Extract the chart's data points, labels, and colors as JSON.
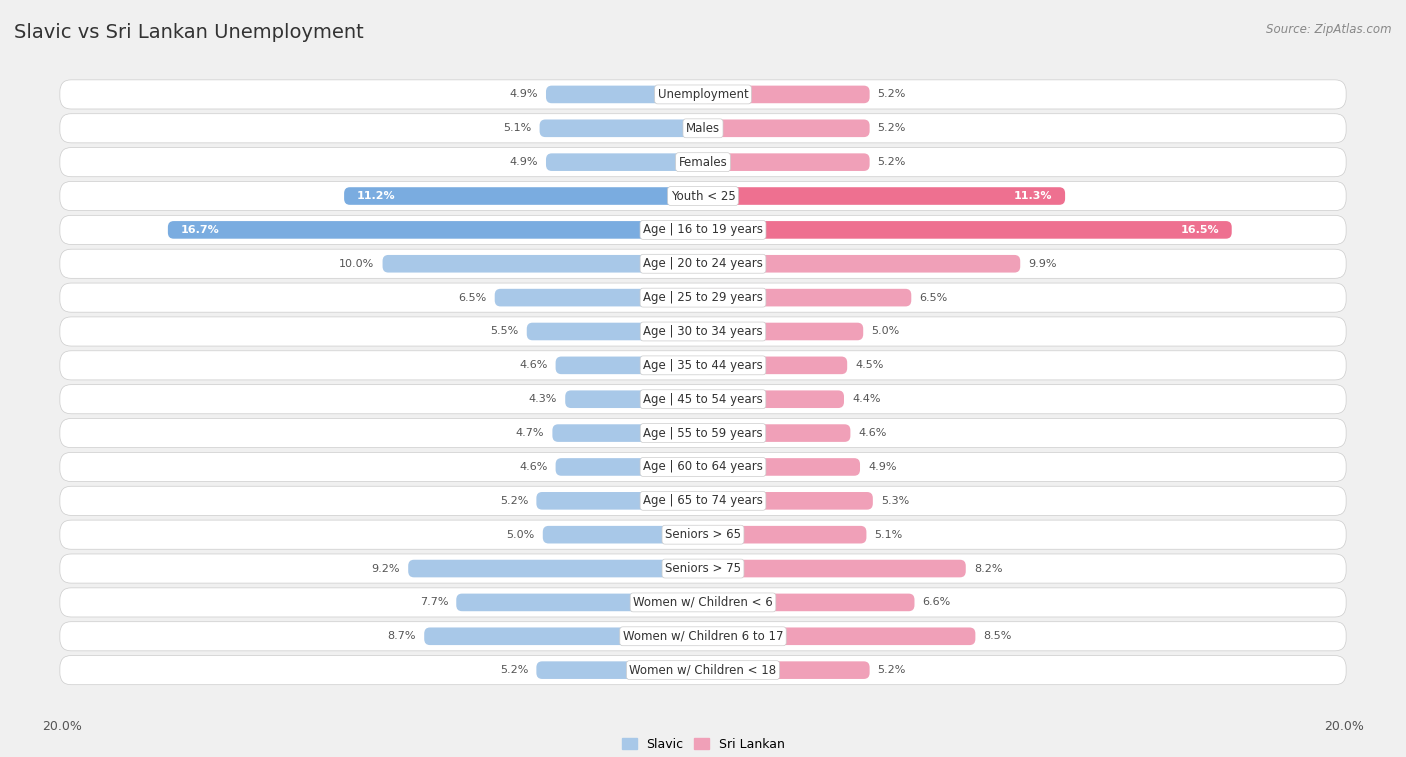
{
  "title": "Slavic vs Sri Lankan Unemployment",
  "source": "Source: ZipAtlas.com",
  "categories": [
    "Unemployment",
    "Males",
    "Females",
    "Youth < 25",
    "Age | 16 to 19 years",
    "Age | 20 to 24 years",
    "Age | 25 to 29 years",
    "Age | 30 to 34 years",
    "Age | 35 to 44 years",
    "Age | 45 to 54 years",
    "Age | 55 to 59 years",
    "Age | 60 to 64 years",
    "Age | 65 to 74 years",
    "Seniors > 65",
    "Seniors > 75",
    "Women w/ Children < 6",
    "Women w/ Children 6 to 17",
    "Women w/ Children < 18"
  ],
  "slavic": [
    4.9,
    5.1,
    4.9,
    11.2,
    16.7,
    10.0,
    6.5,
    5.5,
    4.6,
    4.3,
    4.7,
    4.6,
    5.2,
    5.0,
    9.2,
    7.7,
    8.7,
    5.2
  ],
  "sri_lankan": [
    5.2,
    5.2,
    5.2,
    11.3,
    16.5,
    9.9,
    6.5,
    5.0,
    4.5,
    4.4,
    4.6,
    4.9,
    5.3,
    5.1,
    8.2,
    6.6,
    8.5,
    5.2
  ],
  "slavic_color": "#a8c8e8",
  "sri_lankan_color": "#f0a0b8",
  "highlight_slavic_color": "#7aace0",
  "highlight_sri_lankan_color": "#ee7090",
  "bg_color": "#f0f0f0",
  "row_bg_color": "#ffffff",
  "row_alt_color": "#e8e8e8",
  "max_val": 20.0,
  "legend_slavic": "Slavic",
  "legend_sri_lankan": "Sri Lankan",
  "title_fontsize": 14,
  "label_fontsize": 8.5,
  "value_fontsize": 8.0
}
